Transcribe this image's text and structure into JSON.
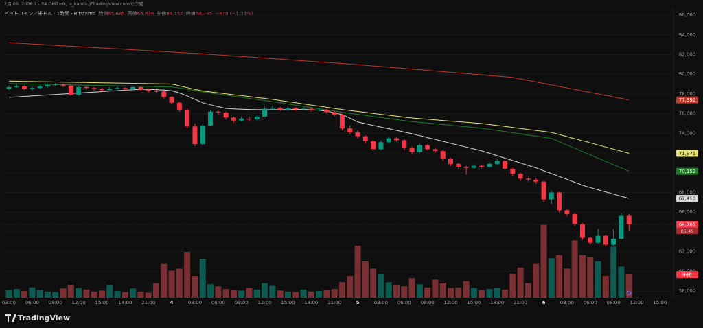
{
  "chart_data": {
    "type": "candlestick",
    "header": {
      "created": "2月 06, 2026 11:54 GMT+9、s_kandaがTradingView.comで作成",
      "symbol": "ビットコイン／米ドル · 1時間 · Bitstamp",
      "open_label": "始値",
      "open": "65,635",
      "high_label": "高値",
      "high": "65,828",
      "low_label": "安値",
      "low": "64,157",
      "close_label": "終値",
      "close": "64,765",
      "change": "−870 (−1.33%)",
      "countdown": "05:45"
    },
    "brand": "TradingView",
    "up_color": "#089981",
    "down_color": "#f23645",
    "ylim": [
      57240,
      86700
    ],
    "yticks": [
      {
        "value": 58000,
        "label": "58,000"
      },
      {
        "value": 60000,
        "label": "60,000"
      },
      {
        "value": 62000,
        "label": "62,000"
      },
      {
        "value": 64000,
        "label": "64,000"
      },
      {
        "value": 66000,
        "label": "66,000"
      },
      {
        "value": 68000,
        "label": "68,000"
      },
      {
        "value": 70000,
        "label": "70,000"
      },
      {
        "value": 72000,
        "label": "72,000"
      },
      {
        "value": 74000,
        "label": "74,000"
      },
      {
        "value": 76000,
        "label": "76,000"
      },
      {
        "value": 78000,
        "label": "78,000"
      },
      {
        "value": 80000,
        "label": "80,000"
      },
      {
        "value": 82000,
        "label": "82,000"
      },
      {
        "value": 84000,
        "label": "84,000"
      },
      {
        "value": 86000,
        "label": "86,000"
      }
    ],
    "categories": [
      "03:00",
      null,
      null,
      "06:00",
      null,
      null,
      "09:00",
      null,
      null,
      "12:00",
      null,
      null,
      "15:00",
      null,
      null,
      "18:00",
      null,
      null,
      "21:00",
      null,
      null,
      "4",
      null,
      null,
      "03:00",
      null,
      null,
      "06:00",
      null,
      null,
      "09:00",
      null,
      null,
      "12:00",
      null,
      null,
      "15:00",
      null,
      null,
      "18:00",
      null,
      null,
      "21:00",
      null,
      null,
      "5",
      null,
      null,
      "03:00",
      null,
      null,
      "06:00",
      null,
      null,
      "09:00",
      null,
      null,
      "12:00",
      null,
      null,
      "15:00",
      null,
      null,
      "18:00",
      null,
      null,
      "21:00",
      null,
      null,
      "6",
      null,
      null,
      "03:00",
      null,
      null,
      "06:00",
      null,
      null,
      "09:00",
      null,
      null,
      "12:00",
      null,
      null,
      "15:00"
    ],
    "open": [
      78500,
      78700,
      78800,
      78500,
      78600,
      78750,
      78900,
      78950,
      78850,
      77900,
      78700,
      78600,
      78500,
      78400,
      78550,
      78600,
      78500,
      78700,
      78450,
      78300,
      78250,
      77700,
      77100,
      76400,
      74700,
      72900,
      74800,
      76200,
      76100,
      75600,
      75300,
      75500,
      75400,
      75700,
      76500,
      76600,
      76400,
      76550,
      76450,
      76500,
      76350,
      76400,
      76150,
      75900,
      74500,
      74100,
      73700,
      73200,
      72400,
      73100,
      73500,
      73300,
      72500,
      72100,
      72800,
      72400,
      72200,
      71400,
      70900,
      70600,
      70500,
      70700,
      70600,
      70900,
      71200,
      70400,
      69900,
      69400,
      69300,
      69100,
      67300,
      68000,
      66200,
      65800,
      64800,
      63400,
      62900,
      63600,
      62700,
      63300,
      65635,
      null,
      null,
      null,
      null
    ],
    "high": [
      78850,
      78950,
      78900,
      78700,
      78900,
      79000,
      79100,
      79050,
      78950,
      78850,
      78800,
      78700,
      78600,
      78700,
      78800,
      78700,
      78850,
      78750,
      78550,
      78400,
      78350,
      77800,
      77200,
      76500,
      75000,
      75000,
      76400,
      76400,
      76200,
      75700,
      75700,
      75650,
      75900,
      76700,
      76800,
      76700,
      76700,
      76650,
      76650,
      76600,
      76550,
      76500,
      76250,
      76000,
      74800,
      74300,
      73800,
      73300,
      73250,
      73650,
      73600,
      73400,
      72650,
      72950,
      72900,
      72500,
      72300,
      71500,
      71000,
      70700,
      70850,
      70800,
      71050,
      71350,
      71300,
      70500,
      70000,
      69500,
      69500,
      69200,
      68200,
      68100,
      66300,
      65900,
      64900,
      63500,
      64300,
      63700,
      64300,
      65900,
      65828,
      null,
      null,
      null,
      null
    ],
    "low": [
      78400,
      78600,
      78400,
      78350,
      78500,
      78650,
      78800,
      78700,
      77800,
      77800,
      78450,
      78350,
      78250,
      78300,
      78450,
      78350,
      78400,
      78300,
      78150,
      78100,
      77550,
      76950,
      76200,
      74500,
      72700,
      72800,
      74700,
      75900,
      75400,
      75100,
      75200,
      75250,
      75300,
      75600,
      76400,
      76250,
      76300,
      76300,
      76350,
      76200,
      76250,
      76000,
      75750,
      74300,
      73900,
      73500,
      73000,
      72200,
      72300,
      73000,
      73150,
      72300,
      71900,
      72000,
      72250,
      72000,
      71200,
      70700,
      70400,
      69800,
      70400,
      70450,
      70500,
      70800,
      70250,
      69700,
      69200,
      69100,
      68900,
      67000,
      66800,
      66000,
      65600,
      64600,
      63200,
      62700,
      62800,
      62500,
      62600,
      63200,
      64157,
      null,
      null,
      null,
      null
    ],
    "close": [
      78700,
      78800,
      78500,
      78600,
      78750,
      78900,
      78950,
      78850,
      77900,
      78700,
      78600,
      78500,
      78400,
      78550,
      78600,
      78500,
      78700,
      78450,
      78300,
      78250,
      77700,
      77100,
      76400,
      74700,
      72900,
      74800,
      76200,
      76100,
      75600,
      75300,
      75500,
      75400,
      75700,
      76500,
      76600,
      76400,
      76550,
      76450,
      76500,
      76350,
      76400,
      76150,
      75900,
      74500,
      74100,
      73700,
      73200,
      72400,
      73100,
      73500,
      73300,
      72500,
      72100,
      72800,
      72400,
      72200,
      71400,
      70900,
      70600,
      70500,
      70700,
      70600,
      70900,
      71200,
      70400,
      69900,
      69400,
      69300,
      69100,
      67300,
      68000,
      66200,
      65800,
      64800,
      63400,
      62900,
      63600,
      62700,
      63300,
      65635,
      64765,
      null,
      null,
      null,
      null
    ],
    "volume": {
      "up_color": "#0c5a51",
      "down_color": "#7a2f33",
      "values": [
        150,
        170,
        130,
        200,
        150,
        120,
        110,
        180,
        250,
        190,
        160,
        120,
        140,
        250,
        130,
        110,
        180,
        120,
        100,
        280,
        650,
        520,
        560,
        880,
        420,
        750,
        260,
        220,
        170,
        150,
        140,
        190,
        160,
        280,
        230,
        140,
        120,
        110,
        160,
        120,
        130,
        150,
        170,
        300,
        420,
        1000,
        700,
        560,
        450,
        300,
        240,
        220,
        380,
        260,
        200,
        350,
        290,
        190,
        200,
        320,
        190,
        150,
        170,
        190,
        160,
        460,
        580,
        280,
        650,
        1400,
        760,
        820,
        560,
        1100,
        820,
        780,
        700,
        420,
        980,
        600,
        448,
        null,
        null,
        null,
        null
      ]
    },
    "series": [
      {
        "color": "#c0392b",
        "last_label": "77,392",
        "values": [
          83200,
          83155,
          83110,
          83065,
          83020,
          82975,
          82930,
          82885,
          82840,
          82795,
          82750,
          82705,
          82660,
          82615,
          82570,
          82525,
          82480,
          82435,
          82390,
          82345,
          82300,
          82255,
          82210,
          82165,
          82120,
          82075,
          82020,
          81965,
          81910,
          81855,
          81800,
          81745,
          81690,
          81635,
          81580,
          81525,
          81470,
          81415,
          81360,
          81305,
          81250,
          81195,
          81140,
          81085,
          81030,
          80975,
          80910,
          80845,
          80780,
          80715,
          80650,
          80585,
          80520,
          80455,
          80390,
          80325,
          80260,
          80195,
          80130,
          80065,
          80000,
          79935,
          79870,
          79805,
          79740,
          79675,
          79523,
          79371,
          79219,
          79067,
          78915,
          78763,
          78611,
          78459,
          78307,
          78155,
          78003,
          77851,
          77699,
          77547,
          77392,
          null,
          null,
          null,
          null
        ]
      },
      {
        "color": "#e6e27a",
        "last_label": "71,971",
        "values": [
          79300,
          79286,
          79272,
          79258,
          79244,
          79230,
          79216,
          79202,
          79188,
          79174,
          79160,
          79146,
          79132,
          79118,
          79104,
          79090,
          79076,
          79062,
          79048,
          79034,
          79020,
          79006,
          78820,
          78640,
          78470,
          78300,
          78205,
          78110,
          78015,
          77920,
          77825,
          77730,
          77635,
          77540,
          77445,
          77330,
          77215,
          77100,
          76985,
          76870,
          76755,
          76640,
          76525,
          76410,
          76315,
          76220,
          76125,
          76030,
          75935,
          75840,
          75745,
          75650,
          75555,
          75493,
          75431,
          75369,
          75307,
          75245,
          75183,
          75121,
          75059,
          74997,
          74897,
          74797,
          74697,
          74597,
          74497,
          74397,
          74297,
          74197,
          74097,
          73884,
          73671,
          73459,
          73246,
          73034,
          72821,
          72609,
          72396,
          72184,
          71971,
          null,
          null,
          null,
          null
        ]
      },
      {
        "color": "#1e7a24",
        "last_label": "70,152",
        "values": [
          79050,
          79034,
          79018,
          79001,
          78985,
          78969,
          78953,
          78937,
          78920,
          78904,
          78888,
          78872,
          78856,
          78839,
          78823,
          78807,
          78791,
          78775,
          78758,
          78742,
          78726,
          78710,
          78600,
          78480,
          78350,
          78210,
          78100,
          77990,
          77880,
          77770,
          77660,
          77550,
          77440,
          77330,
          77220,
          77100,
          76980,
          76860,
          76740,
          76620,
          76500,
          76380,
          76260,
          76140,
          76035,
          75930,
          75825,
          75720,
          75615,
          75510,
          75405,
          75300,
          75195,
          75120,
          75045,
          74970,
          74895,
          74820,
          74745,
          74670,
          74595,
          74520,
          74405,
          74290,
          74175,
          74060,
          73945,
          73830,
          73715,
          73600,
          73485,
          73152,
          72818,
          72485,
          72152,
          71818,
          71485,
          71152,
          70818,
          70485,
          70152,
          null,
          null,
          null,
          null
        ]
      },
      {
        "color": "#d8d8d8",
        "last_label": "67,410",
        "values": [
          77650,
          77699,
          77748,
          77797,
          77846,
          77895,
          77944,
          77993,
          78042,
          78091,
          78140,
          78189,
          78238,
          78287,
          78336,
          78385,
          78434,
          78470,
          78460,
          78440,
          78400,
          78330,
          78100,
          77800,
          77450,
          77100,
          76900,
          76700,
          76530,
          76480,
          76450,
          76420,
          76400,
          76400,
          76400,
          76400,
          76410,
          76420,
          76420,
          76400,
          76350,
          76250,
          76100,
          75900,
          75550,
          75150,
          74980,
          74810,
          74640,
          74470,
          74300,
          74130,
          73960,
          73767,
          73574,
          73381,
          73188,
          72995,
          72802,
          72609,
          72416,
          72223,
          71977,
          71731,
          71485,
          71239,
          70993,
          70747,
          70500,
          70207,
          69914,
          69621,
          69328,
          69035,
          68740,
          68500,
          68270,
          68060,
          67840,
          67620,
          67410,
          null,
          null,
          null,
          null
        ]
      }
    ]
  }
}
